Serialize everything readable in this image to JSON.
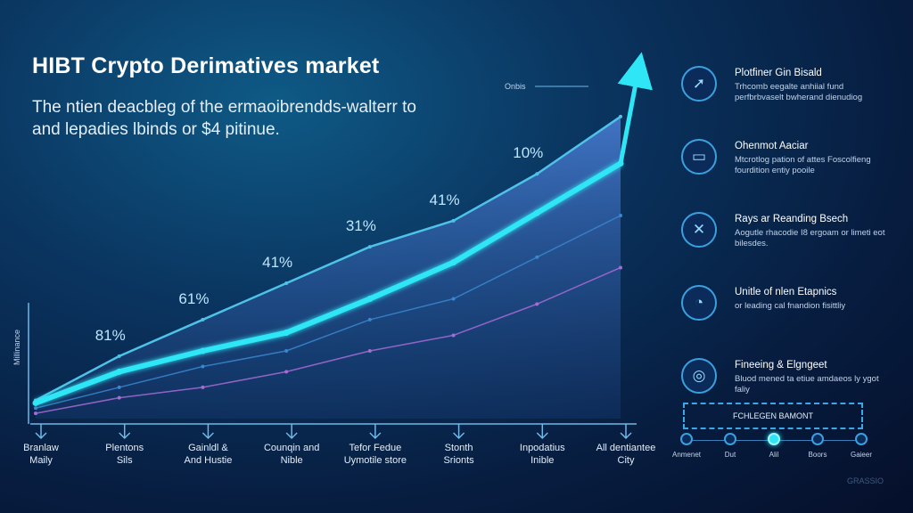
{
  "title": "HIBT Crypto Derimatives market",
  "subtitle": "The ntien deacbleg of the ermaoibrendds-walterr to and lepadies lbinds or $4 pitinue.",
  "chart_data": {
    "type": "line",
    "ylabel": "Millinance",
    "categories": [
      "Branlaw Maily",
      "Plentons Sils",
      "Gainldl & And Hustie",
      "Counqin and Nible",
      "Tefor Fedue Uymotile store",
      "Stonth Srionts",
      "Inpodatius Inible",
      "All dentiantee City"
    ],
    "series": [
      {
        "name": "",
        "color": "#2ee6f5",
        "values": [
          6,
          18,
          26,
          33,
          46,
          60,
          79,
          98
        ]
      },
      {
        "name": "",
        "color": "#4ec3e8",
        "values": [
          7,
          24,
          38,
          52,
          66,
          76,
          94,
          116
        ]
      },
      {
        "name": "",
        "color": "#3a86cf",
        "values": [
          4,
          12,
          20,
          26,
          38,
          46,
          62,
          78
        ]
      },
      {
        "name": "",
        "color": "#a86bd6",
        "values": [
          2,
          8,
          12,
          18,
          26,
          32,
          44,
          58
        ]
      }
    ],
    "annotations": [
      "81%",
      "61%",
      "41%",
      "31%",
      "41%",
      "10%"
    ],
    "peak_label": "Onbis",
    "ylim": [
      0,
      130
    ]
  },
  "features": [
    {
      "icon": "compass-icon",
      "glyph": "➚",
      "title": "Plotfiner Gin Bisald",
      "desc": "Trhcomb eegalte anhiial fund perfbrbvaselt bwherand dienudiog"
    },
    {
      "icon": "card-icon",
      "glyph": "▭",
      "title": "Ohenmot Aaciar",
      "desc": "Mtcrotlog pation of attes Foscolfieng fourdition entiy pooile"
    },
    {
      "icon": "tools-icon",
      "glyph": "✕",
      "title": "Rays ar Reanding Bsech",
      "desc": "Aogutle rhacodie I8 ergoam or limeti eot bilesdes."
    },
    {
      "icon": "gauge-icon",
      "glyph": "◔",
      "title": "Unitle of nlen Etapnics",
      "desc": "or leading cal fnandion fisittliy"
    },
    {
      "icon": "ring-icon",
      "glyph": "◎",
      "title": "Fineeing & Elgngeet",
      "desc": "Bluod mened ta etiue amdaeos ly ygot faliy"
    }
  ],
  "footer": {
    "box_label": "FCHLEGEN BAMONT",
    "steps": [
      "Anmenet",
      "Dut",
      "Alil",
      "Boors",
      "Gaieer"
    ]
  },
  "watermark": "GRASSIO"
}
